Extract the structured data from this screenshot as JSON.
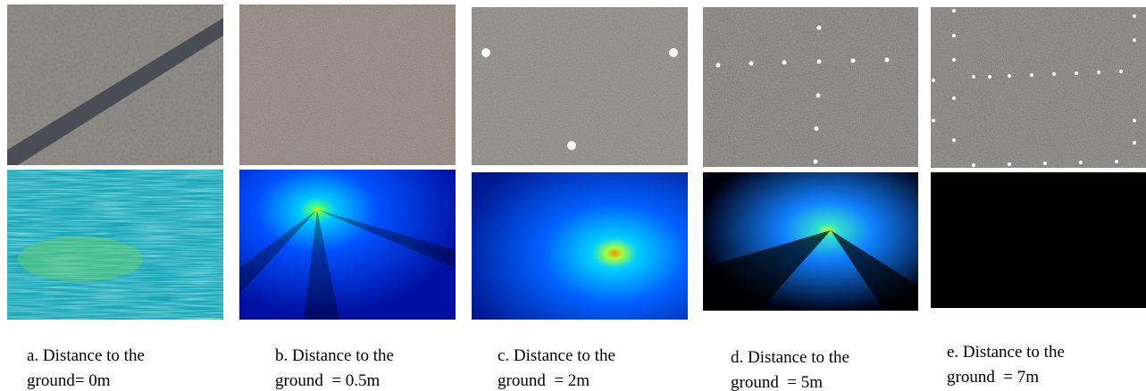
{
  "panels": [
    {
      "caption": [
        "a. Distance to the",
        "ground= 0m"
      ]
    },
    {
      "caption": [
        "b. Distance to the",
        "ground  = 0.5m"
      ]
    },
    {
      "caption": [
        "c. Distance to the",
        "ground  = 2m"
      ]
    },
    {
      "caption": [
        "d. Distance to the",
        "ground  = 5m"
      ]
    },
    {
      "caption": [
        "e. Distance to the",
        "ground  = 7m"
      ]
    }
  ]
}
